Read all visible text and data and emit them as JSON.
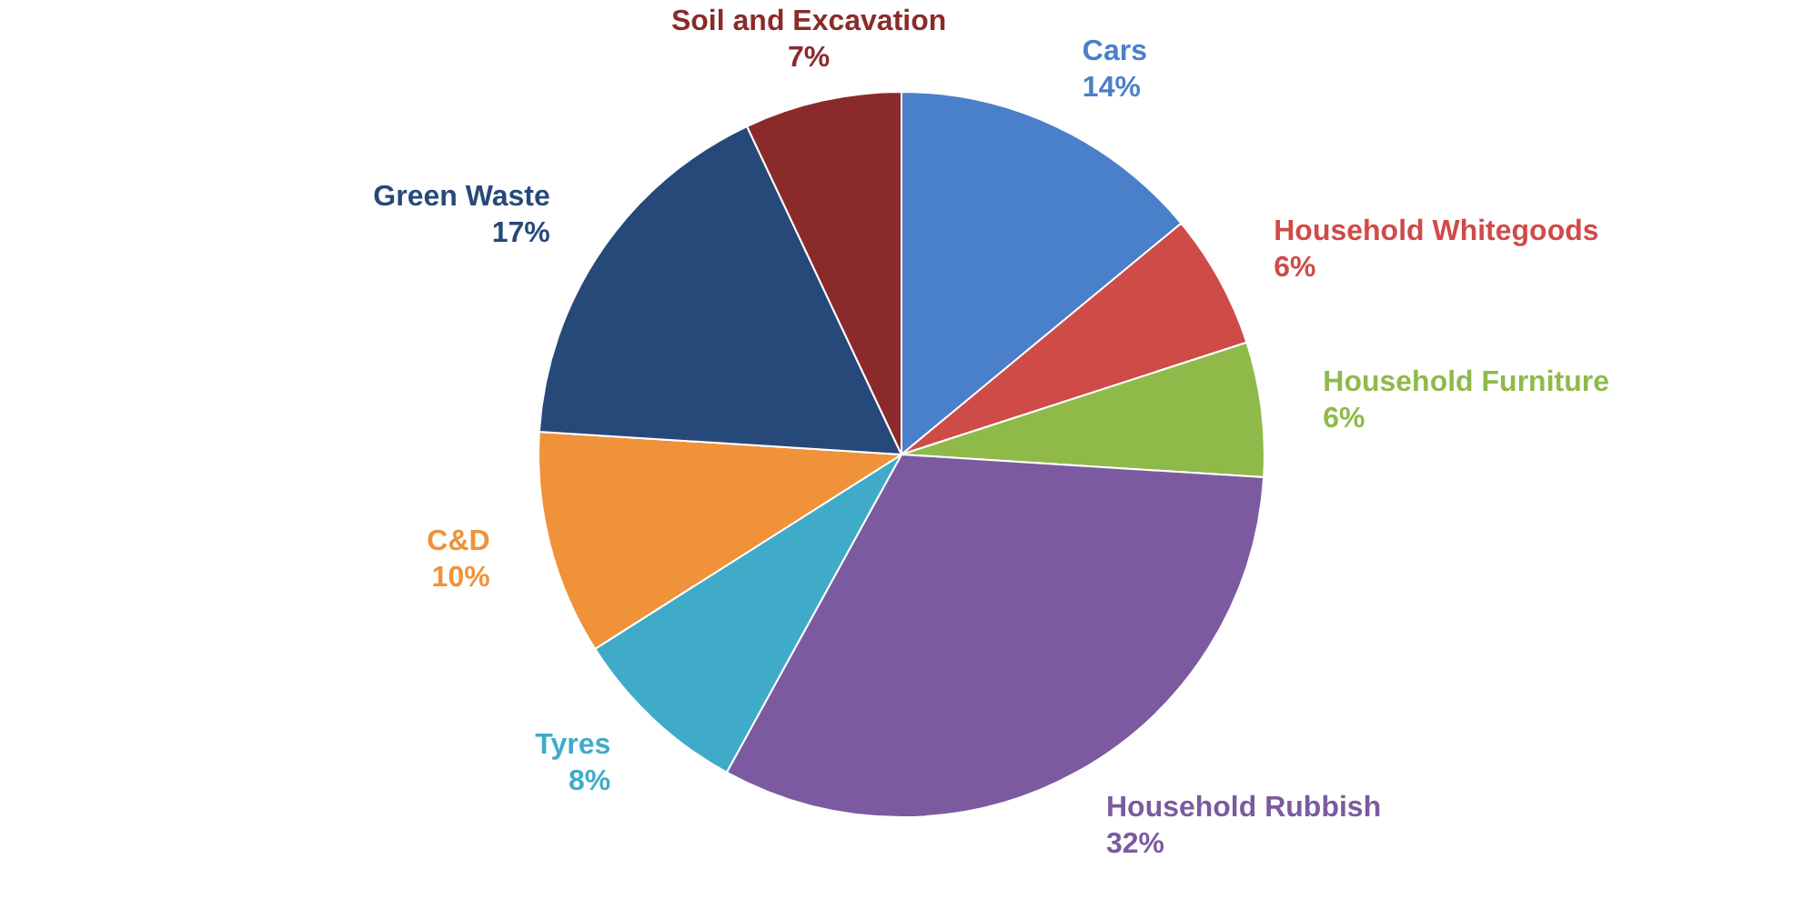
{
  "chart_data": {
    "type": "pie",
    "categories": [
      "Cars",
      "Household Whitegoods",
      "Household Furniture",
      "Household Rubbish",
      "Tyres",
      "C&D",
      "Green Waste",
      "Soil and Excavation"
    ],
    "values": [
      14,
      6,
      6,
      32,
      8,
      10,
      17,
      7
    ],
    "value_labels": [
      "14%",
      "6%",
      "6%",
      "32%",
      "8%",
      "10%",
      "17%",
      "7%"
    ],
    "colors": [
      "#4a7fc9",
      "#cf4b48",
      "#8fba4a",
      "#7c5aa0",
      "#3fabc9",
      "#f0923a",
      "#27497a",
      "#8b2a2a"
    ],
    "legend": false
  }
}
